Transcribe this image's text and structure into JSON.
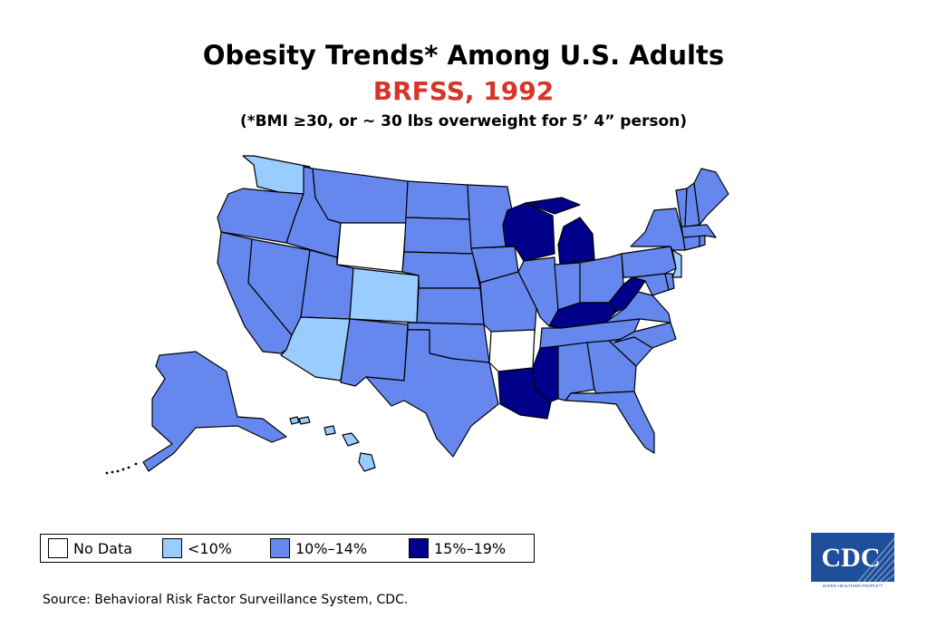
{
  "title": "Obesity Trends* Among U.S. Adults",
  "subtitle": "BRFSS, 1992",
  "note": "(*BMI ≥30, or ~ 30 lbs overweight for 5’ 4” person)",
  "colors": {
    "no_data": "#ffffff",
    "lt10": "#99ccff",
    "p10_14": "#6688ee",
    "p15_19": "#00008b",
    "border": "#000000",
    "subtitle": "#d6352a",
    "cdc_blue": "#1f4f9a"
  },
  "legend": [
    {
      "label": "No Data",
      "color": "#ffffff"
    },
    {
      "label": "<10%",
      "color": "#99ccff"
    },
    {
      "label": "10%–14%",
      "color": "#6688ee"
    },
    {
      "label": "15%–19%",
      "color": "#00008b"
    }
  ],
  "states": {
    "No Data": [
      "Wyoming",
      "Arkansas"
    ],
    "<10%": [
      "Washington",
      "Colorado",
      "Arizona",
      "New Jersey",
      "Hawaii"
    ],
    "10%–14%": [
      "Oregon",
      "California",
      "Nevada",
      "Idaho",
      "Montana",
      "Utah",
      "New Mexico",
      "North Dakota",
      "South Dakota",
      "Nebraska",
      "Kansas",
      "Oklahoma",
      "Texas",
      "Minnesota",
      "Iowa",
      "Missouri",
      "Illinois",
      "Indiana",
      "Ohio",
      "Tennessee",
      "Alabama",
      "Georgia",
      "Florida",
      "South Carolina",
      "North Carolina",
      "Virginia",
      "Maryland",
      "Delaware",
      "Pennsylvania",
      "New York",
      "Vermont",
      "New Hampshire",
      "Maine",
      "Massachusetts",
      "Connecticut",
      "Rhode Island",
      "Alaska"
    ],
    "15%–19%": [
      "Wisconsin",
      "Michigan",
      "Kentucky",
      "West Virginia",
      "Mississippi",
      "Louisiana"
    ]
  },
  "source": "Source: Behavioral Risk Factor Surveillance System, CDC.",
  "logo": {
    "text": "CDC",
    "tagline": "SAFER·HEALTHIER·PEOPLE™"
  }
}
